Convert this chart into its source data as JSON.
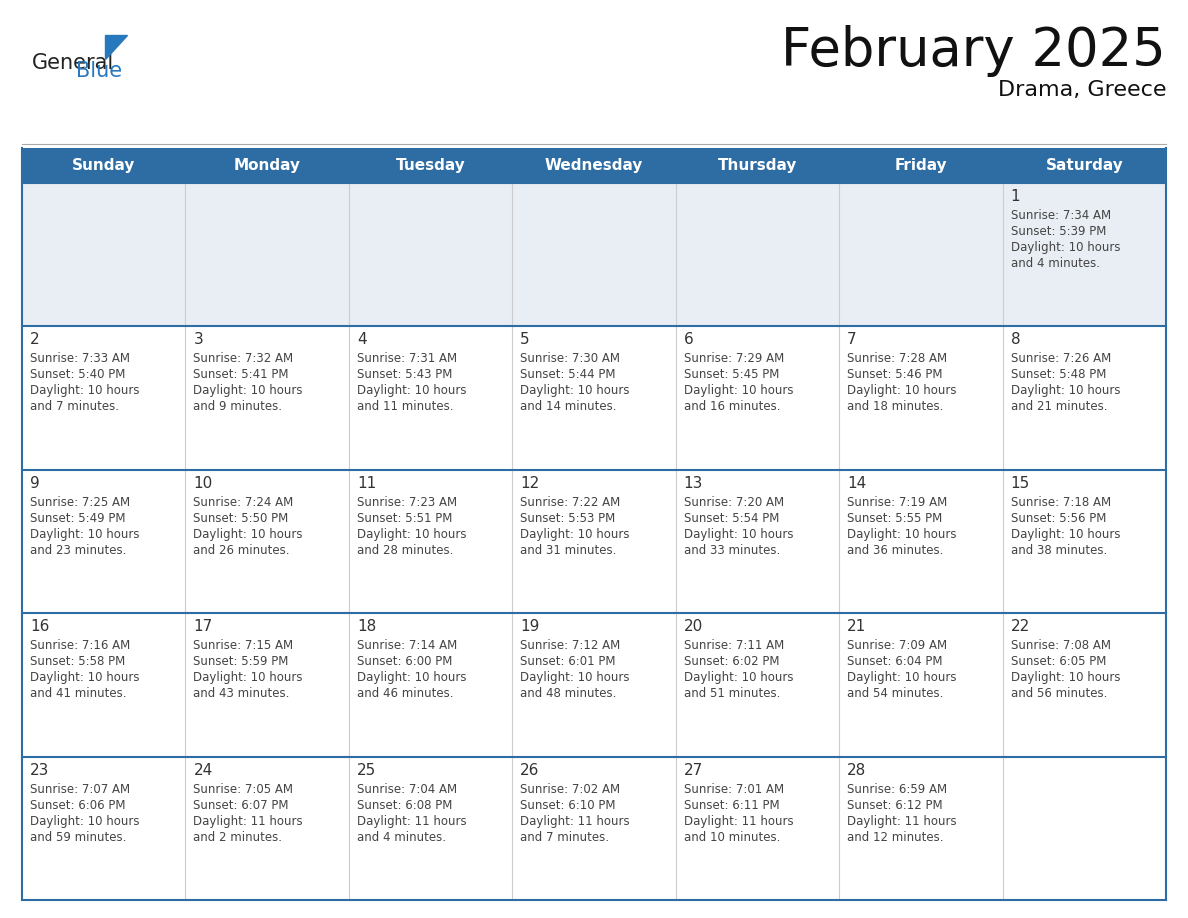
{
  "title": "February 2025",
  "subtitle": "Drama, Greece",
  "header_bg": "#2E6DA4",
  "header_text_color": "#FFFFFF",
  "days_of_week": [
    "Sunday",
    "Monday",
    "Tuesday",
    "Wednesday",
    "Thursday",
    "Friday",
    "Saturday"
  ],
  "row1_bg": "#E8EEF4",
  "cell_bg": "#FFFFFF",
  "cell_border": "#2E6DA4",
  "outer_border": "#2E6DA4",
  "day_number_color": "#333333",
  "text_color": "#444444",
  "logo_general_color": "#222222",
  "logo_blue_color": "#2878BE",
  "calendar": [
    [
      null,
      null,
      null,
      null,
      null,
      null,
      {
        "day": "1",
        "sunrise": "7:34 AM",
        "sunset": "5:39 PM",
        "daylight": "10 hours",
        "daylight2": "and 4 minutes."
      }
    ],
    [
      {
        "day": "2",
        "sunrise": "7:33 AM",
        "sunset": "5:40 PM",
        "daylight": "10 hours",
        "daylight2": "and 7 minutes."
      },
      {
        "day": "3",
        "sunrise": "7:32 AM",
        "sunset": "5:41 PM",
        "daylight": "10 hours",
        "daylight2": "and 9 minutes."
      },
      {
        "day": "4",
        "sunrise": "7:31 AM",
        "sunset": "5:43 PM",
        "daylight": "10 hours",
        "daylight2": "and 11 minutes."
      },
      {
        "day": "5",
        "sunrise": "7:30 AM",
        "sunset": "5:44 PM",
        "daylight": "10 hours",
        "daylight2": "and 14 minutes."
      },
      {
        "day": "6",
        "sunrise": "7:29 AM",
        "sunset": "5:45 PM",
        "daylight": "10 hours",
        "daylight2": "and 16 minutes."
      },
      {
        "day": "7",
        "sunrise": "7:28 AM",
        "sunset": "5:46 PM",
        "daylight": "10 hours",
        "daylight2": "and 18 minutes."
      },
      {
        "day": "8",
        "sunrise": "7:26 AM",
        "sunset": "5:48 PM",
        "daylight": "10 hours",
        "daylight2": "and 21 minutes."
      }
    ],
    [
      {
        "day": "9",
        "sunrise": "7:25 AM",
        "sunset": "5:49 PM",
        "daylight": "10 hours",
        "daylight2": "and 23 minutes."
      },
      {
        "day": "10",
        "sunrise": "7:24 AM",
        "sunset": "5:50 PM",
        "daylight": "10 hours",
        "daylight2": "and 26 minutes."
      },
      {
        "day": "11",
        "sunrise": "7:23 AM",
        "sunset": "5:51 PM",
        "daylight": "10 hours",
        "daylight2": "and 28 minutes."
      },
      {
        "day": "12",
        "sunrise": "7:22 AM",
        "sunset": "5:53 PM",
        "daylight": "10 hours",
        "daylight2": "and 31 minutes."
      },
      {
        "day": "13",
        "sunrise": "7:20 AM",
        "sunset": "5:54 PM",
        "daylight": "10 hours",
        "daylight2": "and 33 minutes."
      },
      {
        "day": "14",
        "sunrise": "7:19 AM",
        "sunset": "5:55 PM",
        "daylight": "10 hours",
        "daylight2": "and 36 minutes."
      },
      {
        "day": "15",
        "sunrise": "7:18 AM",
        "sunset": "5:56 PM",
        "daylight": "10 hours",
        "daylight2": "and 38 minutes."
      }
    ],
    [
      {
        "day": "16",
        "sunrise": "7:16 AM",
        "sunset": "5:58 PM",
        "daylight": "10 hours",
        "daylight2": "and 41 minutes."
      },
      {
        "day": "17",
        "sunrise": "7:15 AM",
        "sunset": "5:59 PM",
        "daylight": "10 hours",
        "daylight2": "and 43 minutes."
      },
      {
        "day": "18",
        "sunrise": "7:14 AM",
        "sunset": "6:00 PM",
        "daylight": "10 hours",
        "daylight2": "and 46 minutes."
      },
      {
        "day": "19",
        "sunrise": "7:12 AM",
        "sunset": "6:01 PM",
        "daylight": "10 hours",
        "daylight2": "and 48 minutes."
      },
      {
        "day": "20",
        "sunrise": "7:11 AM",
        "sunset": "6:02 PM",
        "daylight": "10 hours",
        "daylight2": "and 51 minutes."
      },
      {
        "day": "21",
        "sunrise": "7:09 AM",
        "sunset": "6:04 PM",
        "daylight": "10 hours",
        "daylight2": "and 54 minutes."
      },
      {
        "day": "22",
        "sunrise": "7:08 AM",
        "sunset": "6:05 PM",
        "daylight": "10 hours",
        "daylight2": "and 56 minutes."
      }
    ],
    [
      {
        "day": "23",
        "sunrise": "7:07 AM",
        "sunset": "6:06 PM",
        "daylight": "10 hours",
        "daylight2": "and 59 minutes."
      },
      {
        "day": "24",
        "sunrise": "7:05 AM",
        "sunset": "6:07 PM",
        "daylight": "11 hours",
        "daylight2": "and 2 minutes."
      },
      {
        "day": "25",
        "sunrise": "7:04 AM",
        "sunset": "6:08 PM",
        "daylight": "11 hours",
        "daylight2": "and 4 minutes."
      },
      {
        "day": "26",
        "sunrise": "7:02 AM",
        "sunset": "6:10 PM",
        "daylight": "11 hours",
        "daylight2": "and 7 minutes."
      },
      {
        "day": "27",
        "sunrise": "7:01 AM",
        "sunset": "6:11 PM",
        "daylight": "11 hours",
        "daylight2": "and 10 minutes."
      },
      {
        "day": "28",
        "sunrise": "6:59 AM",
        "sunset": "6:12 PM",
        "daylight": "11 hours",
        "daylight2": "and 12 minutes."
      },
      null
    ]
  ]
}
